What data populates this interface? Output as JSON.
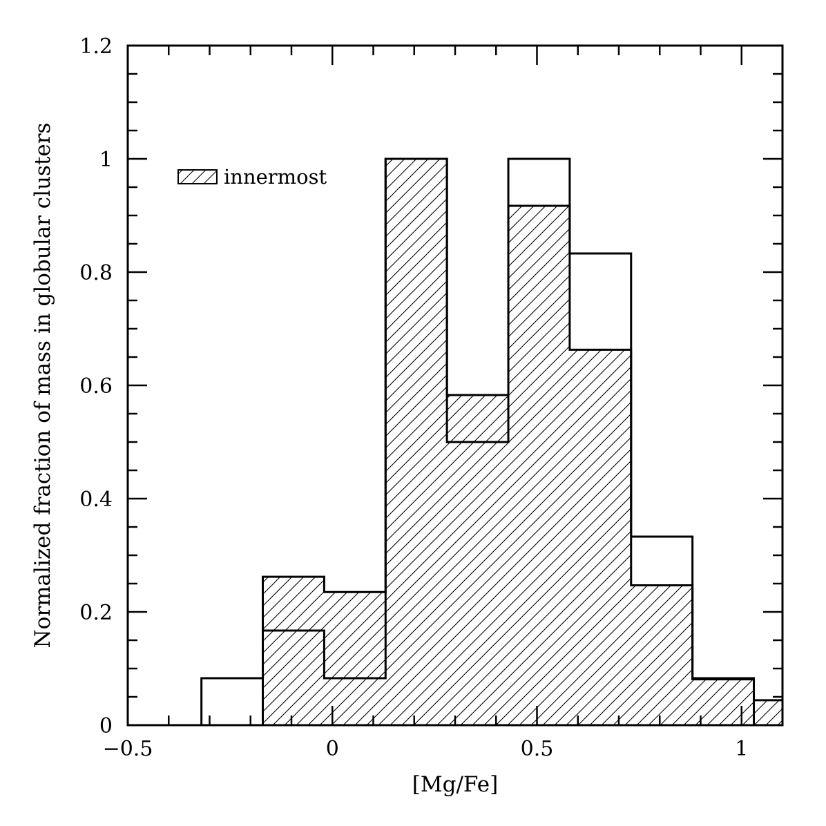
{
  "chart_data": {
    "type": "histogram",
    "title": "",
    "xlabel": "[Mg/Fe]",
    "ylabel": "Normalized fraction of mass in globular clusters",
    "xlim": [
      -0.5,
      1.1
    ],
    "ylim": [
      0,
      1.2
    ],
    "x_ticks": [
      {
        "value": -0.5,
        "label": "−0.5"
      },
      {
        "value": 0,
        "label": "0"
      },
      {
        "value": 0.5,
        "label": "0.5"
      },
      {
        "value": 1,
        "label": "1"
      }
    ],
    "y_ticks": [
      {
        "value": 0,
        "label": "0"
      },
      {
        "value": 0.2,
        "label": "0.2"
      },
      {
        "value": 0.4,
        "label": "0.4"
      },
      {
        "value": 0.6,
        "label": "0.6"
      },
      {
        "value": 0.8,
        "label": "0.8"
      },
      {
        "value": 1,
        "label": "1"
      },
      {
        "value": 1.2,
        "label": "1.2"
      }
    ],
    "x_minor_step": 0.1,
    "y_minor_step": 0.05,
    "grid": false,
    "legend_position": "top-left",
    "series": [
      {
        "name": "innermost",
        "style": "hatched",
        "bin_edges": [
          -0.17,
          -0.02,
          0.13,
          0.28,
          0.43,
          0.58,
          0.73,
          0.88,
          1.03,
          1.18
        ],
        "values": [
          0.262,
          0.235,
          1.0,
          0.583,
          0.917,
          0.663,
          0.247,
          0.081,
          0.044
        ]
      },
      {
        "name": "",
        "style": "outline",
        "bin_edges": [
          -0.32,
          -0.17,
          -0.02,
          0.13,
          0.28,
          0.43,
          0.58,
          0.73,
          0.88,
          1.03
        ],
        "values": [
          0.083,
          0.167,
          0.083,
          1.0,
          0.5,
          1.0,
          0.833,
          0.333,
          0.083
        ]
      }
    ]
  }
}
